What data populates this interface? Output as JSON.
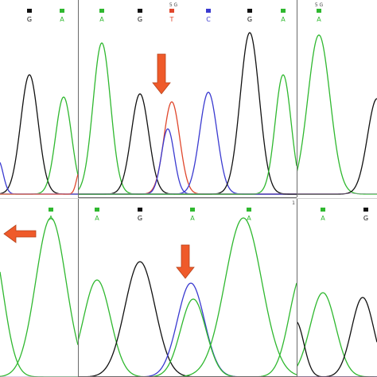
{
  "colors": {
    "A": "#2fb82f",
    "G": "#111111",
    "T": "#e0472c",
    "C": "#3a3ad0",
    "frame": "#6a6a6a",
    "arrow": "#ef5a2a",
    "arrow_outline": "#b7431b"
  },
  "panels": [
    {
      "id": "panel-top-left",
      "bases": [
        {
          "label": "G",
          "base": "G"
        },
        {
          "label": "A",
          "base": "A"
        }
      ]
    },
    {
      "id": "panel-top-middle",
      "header": "5 G",
      "bases": [
        {
          "label": "A",
          "base": "A"
        },
        {
          "label": "G",
          "base": "G"
        },
        {
          "label": "T",
          "base": "T"
        },
        {
          "label": "C",
          "base": "C"
        },
        {
          "label": "G",
          "base": "G"
        },
        {
          "label": "A",
          "base": "A"
        }
      ]
    },
    {
      "id": "panel-top-right",
      "header": "5 G",
      "bases": [
        {
          "label": "A",
          "base": "A"
        }
      ]
    },
    {
      "id": "panel-bottom-left",
      "bases": [
        {
          "label": "A",
          "base": "A"
        }
      ]
    },
    {
      "id": "panel-bottom-middle",
      "corner_mark": "1",
      "bases": [
        {
          "label": "A",
          "base": "A"
        },
        {
          "label": "G",
          "base": "G"
        },
        {
          "label": "A",
          "base": "A"
        },
        {
          "label": "A",
          "base": "A"
        }
      ]
    },
    {
      "id": "panel-bottom-right",
      "bases": [
        {
          "label": "A",
          "base": "A"
        },
        {
          "label": "G",
          "base": "G"
        }
      ]
    }
  ],
  "arrows": [
    {
      "name": "arrow-top-heterozygous-peak",
      "direction": "down"
    },
    {
      "name": "arrow-bottom-left",
      "direction": "left"
    },
    {
      "name": "arrow-bottom-heterozygous-peak",
      "direction": "down"
    }
  ]
}
